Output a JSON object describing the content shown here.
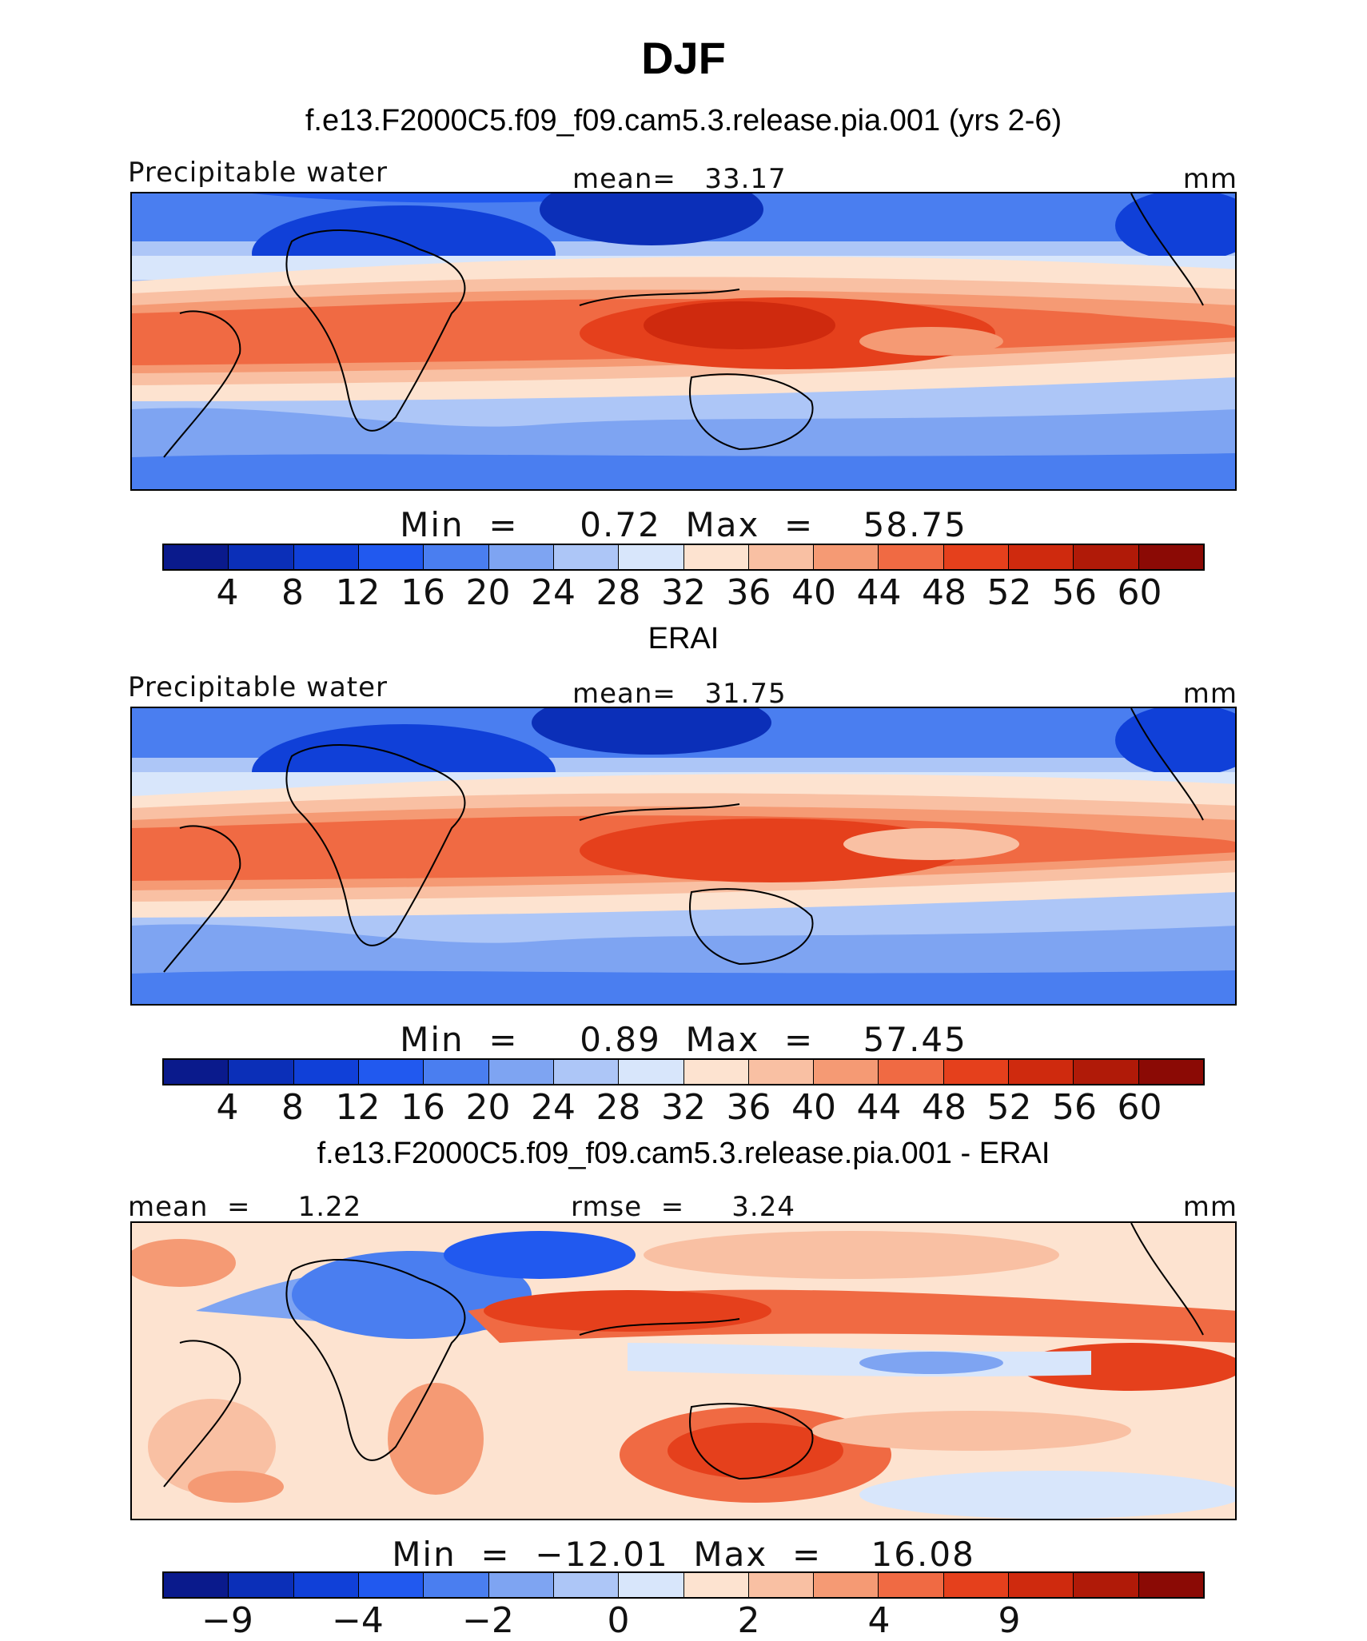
{
  "title": "DJF",
  "chart_data": [
    {
      "type": "heatmap",
      "title": "f.e13.F2000C5.f09_f09.cam5.3.release.pia.001 (yrs 2-6)",
      "left_label": "Precipitable water",
      "center_label": "mean=   33.17",
      "units": "mm",
      "minmax": "Min  =     0.72  Max  =    58.75",
      "colorbar": {
        "levels": [
          "4",
          "8",
          "12",
          "16",
          "20",
          "24",
          "28",
          "32",
          "36",
          "40",
          "44",
          "48",
          "52",
          "56",
          "60"
        ],
        "colors": [
          "#0a1a8c",
          "#0b2fb8",
          "#1040d8",
          "#2159ef",
          "#4a7ef0",
          "#7ea4f2",
          "#adc6f7",
          "#d8e6fb",
          "#fde3d0",
          "#f9c0a3",
          "#f59a74",
          "#f06a43",
          "#e5401c",
          "#cf2a0e",
          "#b01a08",
          "#8b0a05"
        ]
      },
      "stats": {
        "mean": 33.17,
        "min": 0.72,
        "max": 58.75
      }
    },
    {
      "type": "heatmap",
      "title": "ERAI",
      "left_label": "Precipitable water",
      "center_label": "mean=   31.75",
      "units": "mm",
      "minmax": "Min  =     0.89  Max  =    57.45",
      "colorbar": {
        "levels": [
          "4",
          "8",
          "12",
          "16",
          "20",
          "24",
          "28",
          "32",
          "36",
          "40",
          "44",
          "48",
          "52",
          "56",
          "60"
        ],
        "colors": [
          "#0a1a8c",
          "#0b2fb8",
          "#1040d8",
          "#2159ef",
          "#4a7ef0",
          "#7ea4f2",
          "#adc6f7",
          "#d8e6fb",
          "#fde3d0",
          "#f9c0a3",
          "#f59a74",
          "#f06a43",
          "#e5401c",
          "#cf2a0e",
          "#b01a08",
          "#8b0a05"
        ]
      },
      "stats": {
        "mean": 31.75,
        "min": 0.89,
        "max": 57.45
      }
    },
    {
      "type": "heatmap",
      "title": "f.e13.F2000C5.f09_f09.cam5.3.release.pia.001 - ERAI",
      "left_label": "mean  =     1.22",
      "center_label": "rmse  =     3.24",
      "units": "mm",
      "minmax": "Min  =  −12.01  Max  =    16.08",
      "colorbar": {
        "levels": [
          "−9",
          "",
          "−4",
          "",
          "−2",
          "",
          "0",
          "",
          "2",
          "",
          "4",
          "",
          "9",
          "",
          ""
        ],
        "colors": [
          "#0a1a8c",
          "#0b2fb8",
          "#1040d8",
          "#2159ef",
          "#4a7ef0",
          "#7ea4f2",
          "#adc6f7",
          "#d8e6fb",
          "#fde3d0",
          "#f9c0a3",
          "#f59a74",
          "#f06a43",
          "#e5401c",
          "#cf2a0e",
          "#b01a08",
          "#8b0a05"
        ]
      },
      "stats": {
        "mean": 1.22,
        "rmse": 3.24,
        "min": -12.01,
        "max": 16.08
      }
    }
  ]
}
